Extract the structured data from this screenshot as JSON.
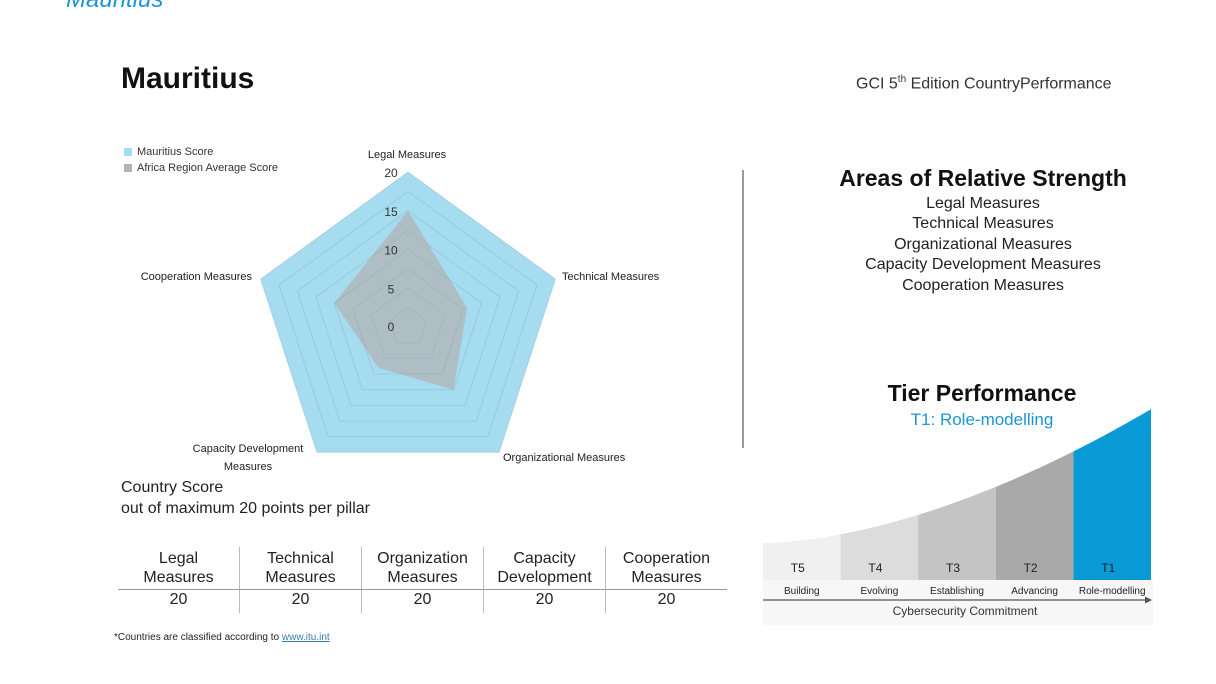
{
  "header": {
    "top_title": "Mauritius",
    "country_title": "Mauritius",
    "edition_prefix": "GCI 5",
    "edition_sup": "th",
    "edition_suffix": " Edition CountryPerformance"
  },
  "chart_data": {
    "type": "radar",
    "axes": [
      "Legal Measures",
      "Technical Measures",
      "Organizational Measures",
      "Capacity Development Measures",
      "Cooperation Measures"
    ],
    "axis_label_lines": [
      [
        "Legal Measures"
      ],
      [
        "Technical Measures"
      ],
      [
        "Organizational Measures"
      ],
      [
        "Capacity Development",
        "Measures"
      ],
      [
        "Cooperation Measures"
      ]
    ],
    "ticks": [
      0,
      5,
      10,
      15,
      20
    ],
    "range": [
      0,
      20
    ],
    "legend_position": "top-left",
    "series": [
      {
        "name": "Mauritius Score",
        "color": "#a6dcf0",
        "values": [
          20,
          20,
          20,
          20,
          20
        ]
      },
      {
        "name": "Africa Region Average Score",
        "color": "#b0b4b6",
        "values": [
          15,
          8,
          10,
          6.5,
          10
        ]
      }
    ]
  },
  "caption": {
    "line1": "Country Score",
    "line2": "out of maximum 20 points per pillar"
  },
  "score_table": {
    "headers": [
      [
        "Legal",
        "Measures"
      ],
      [
        "Technical",
        "Measures"
      ],
      [
        "Organization",
        "Measures"
      ],
      [
        "Capacity",
        "Development"
      ],
      [
        "Cooperation",
        "Measures"
      ]
    ],
    "values": [
      "20",
      "20",
      "20",
      "20",
      "20"
    ]
  },
  "footnote": {
    "text": "*Countries are classified according to ",
    "link": "www.itu.int"
  },
  "strengths": {
    "title": "Areas of Relative Strength",
    "items": [
      "Legal Measures",
      "Technical Measures",
      "Organizational Measures",
      "Capacity Development Measures",
      "Cooperation Measures"
    ]
  },
  "tier": {
    "title": "Tier Performance",
    "subtitle": "T1: Role-modelling",
    "axis_label": "Cybersecurity Commitment",
    "accent": "#0a9ad6",
    "tiers": [
      {
        "code": "T5",
        "name": "Building",
        "color": "#f0f0f0"
      },
      {
        "code": "T4",
        "name": "Evolving",
        "color": "#dcdcdc"
      },
      {
        "code": "T3",
        "name": "Establishing",
        "color": "#c4c4c4"
      },
      {
        "code": "T2",
        "name": "Advancing",
        "color": "#a9a9a9"
      },
      {
        "code": "T1",
        "name": "Role-modelling",
        "color": "#0a9ad6"
      }
    ]
  }
}
